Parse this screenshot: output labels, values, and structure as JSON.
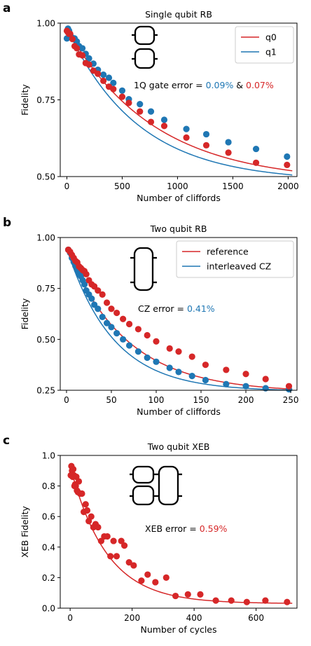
{
  "colors": {
    "red": "#d62728",
    "blue": "#1f77b4"
  },
  "chart_data": [
    {
      "panel": "a",
      "type": "scatter",
      "title": "Single qubit RB",
      "xlabel": "Number of cliffords",
      "ylabel": "Fidelity",
      "xlim": [
        -60,
        2080
      ],
      "ylim": [
        0.5,
        1.0
      ],
      "xticks": [
        0,
        500,
        1000,
        1500,
        2000
      ],
      "yticks": [
        0.5,
        0.75,
        1.0
      ],
      "xtick_labels": [
        "0",
        "500",
        "1000",
        "1500",
        "2000"
      ],
      "ytick_labels": [
        "0.50",
        "0.75",
        "1.00"
      ],
      "legend": {
        "placement": "top-right"
      },
      "annotation": {
        "prefix": "1Q gate error = ",
        "value1": "0.09%",
        "sep": " & ",
        "value2": "0.07%"
      },
      "series": [
        {
          "name": "q0",
          "color": "red",
          "fit": {
            "A": 0.5,
            "p": 0.99872,
            "B": 0.482
          },
          "x": [
            0,
            10,
            20,
            30,
            50,
            70,
            90,
            110,
            140,
            170,
            200,
            240,
            280,
            330,
            380,
            420,
            500,
            560,
            660,
            760,
            880,
            1080,
            1260,
            1460,
            1710,
            1990
          ],
          "y": [
            0.975,
            0.97,
            0.965,
            0.965,
            0.948,
            0.925,
            0.918,
            0.898,
            0.895,
            0.87,
            0.865,
            0.845,
            0.835,
            0.812,
            0.793,
            0.785,
            0.76,
            0.74,
            0.712,
            0.678,
            0.665,
            0.627,
            0.602,
            0.578,
            0.545,
            0.538
          ]
        },
        {
          "name": "q1",
          "color": "blue",
          "fit": {
            "A": 0.5,
            "p": 0.99845,
            "B": 0.484
          },
          "x": [
            0,
            10,
            20,
            30,
            50,
            70,
            90,
            110,
            140,
            170,
            200,
            240,
            280,
            330,
            380,
            420,
            500,
            560,
            660,
            760,
            880,
            1080,
            1260,
            1460,
            1710,
            1990
          ],
          "y": [
            0.95,
            0.982,
            0.975,
            0.962,
            0.952,
            0.95,
            0.94,
            0.925,
            0.918,
            0.9,
            0.885,
            0.868,
            0.848,
            0.832,
            0.822,
            0.805,
            0.78,
            0.752,
            0.736,
            0.712,
            0.685,
            0.655,
            0.638,
            0.612,
            0.59,
            0.565
          ]
        }
      ]
    },
    {
      "panel": "b",
      "type": "scatter",
      "title": "Two qubit RB",
      "xlabel": "Number of cliffords",
      "ylabel": "Fidelity",
      "xlim": [
        -7,
        257
      ],
      "ylim": [
        0.25,
        1.0
      ],
      "xticks": [
        0,
        50,
        100,
        150,
        200,
        250
      ],
      "yticks": [
        0.25,
        0.5,
        0.75,
        1.0
      ],
      "xtick_labels": [
        "0",
        "50",
        "100",
        "150",
        "200",
        "250"
      ],
      "ytick_labels": [
        "0.25",
        "0.50",
        "0.75",
        "1.00"
      ],
      "legend": {
        "placement": "top-right"
      },
      "annotation": {
        "prefix": "CZ error = ",
        "value1": "0.41%"
      },
      "series": [
        {
          "name": "reference",
          "color": "red",
          "fit": {
            "A": 0.705,
            "p": 0.985,
            "B": 0.24
          },
          "x": [
            2,
            4,
            6,
            8,
            10,
            12,
            14,
            16,
            18,
            20,
            22,
            25,
            28,
            31,
            35,
            40,
            45,
            50,
            56,
            63,
            70,
            80,
            90,
            100,
            115,
            125,
            140,
            155,
            178,
            200,
            222,
            248
          ],
          "y": [
            0.94,
            0.93,
            0.915,
            0.9,
            0.885,
            0.878,
            0.858,
            0.85,
            0.84,
            0.835,
            0.82,
            0.79,
            0.77,
            0.76,
            0.74,
            0.72,
            0.68,
            0.65,
            0.63,
            0.6,
            0.575,
            0.55,
            0.52,
            0.49,
            0.455,
            0.44,
            0.415,
            0.375,
            0.35,
            0.33,
            0.305,
            0.27
          ]
        },
        {
          "name": "interleaved CZ",
          "color": "blue",
          "fit": {
            "A": 0.705,
            "p": 0.9808,
            "B": 0.245
          },
          "x": [
            2,
            4,
            6,
            8,
            10,
            12,
            14,
            16,
            18,
            20,
            22,
            25,
            28,
            31,
            35,
            40,
            45,
            50,
            56,
            63,
            70,
            80,
            90,
            100,
            115,
            125,
            140,
            155,
            178,
            200,
            222,
            248
          ],
          "y": [
            0.94,
            0.925,
            0.9,
            0.88,
            0.86,
            0.84,
            0.82,
            0.81,
            0.79,
            0.77,
            0.74,
            0.72,
            0.7,
            0.67,
            0.65,
            0.61,
            0.58,
            0.56,
            0.53,
            0.5,
            0.47,
            0.44,
            0.41,
            0.39,
            0.36,
            0.34,
            0.32,
            0.3,
            0.28,
            0.27,
            0.26,
            0.255
          ]
        }
      ]
    },
    {
      "panel": "c",
      "type": "scatter",
      "title": "Two qubit XEB",
      "xlabel": "Number of cycles",
      "ylabel": "XEB Fidelity",
      "xlim": [
        -32,
        732
      ],
      "ylim": [
        0.0,
        1.0
      ],
      "xticks": [
        0,
        200,
        400,
        600
      ],
      "yticks": [
        0.0,
        0.2,
        0.4,
        0.6,
        0.8,
        1.0
      ],
      "xtick_labels": [
        "0",
        "200",
        "400",
        "600"
      ],
      "ytick_labels": [
        "0.0",
        "0.2",
        "0.4",
        "0.6",
        "0.8",
        "1.0"
      ],
      "annotation": {
        "prefix": "XEB error = ",
        "value1": "0.59%"
      },
      "series": [
        {
          "color": "red",
          "fit": {
            "A": 0.9,
            "p": 0.9915,
            "B": 0.03
          },
          "x": [
            2,
            4,
            6,
            8,
            10,
            12,
            14,
            16,
            18,
            20,
            22,
            25,
            28,
            32,
            38,
            44,
            50,
            55,
            60,
            68,
            75,
            82,
            90,
            100,
            110,
            120,
            130,
            140,
            150,
            165,
            175,
            190,
            205,
            230,
            250,
            275,
            310,
            340,
            380,
            420,
            470,
            520,
            570,
            630,
            700
          ],
          "y": [
            0.87,
            0.93,
            0.9,
            0.86,
            0.91,
            0.87,
            0.8,
            0.81,
            0.8,
            0.86,
            0.77,
            0.76,
            0.83,
            0.75,
            0.75,
            0.63,
            0.68,
            0.64,
            0.57,
            0.6,
            0.53,
            0.55,
            0.53,
            0.44,
            0.47,
            0.47,
            0.34,
            0.44,
            0.34,
            0.44,
            0.41,
            0.3,
            0.28,
            0.18,
            0.22,
            0.17,
            0.2,
            0.08,
            0.09,
            0.09,
            0.05,
            0.05,
            0.04,
            0.05,
            0.04
          ]
        }
      ]
    }
  ]
}
